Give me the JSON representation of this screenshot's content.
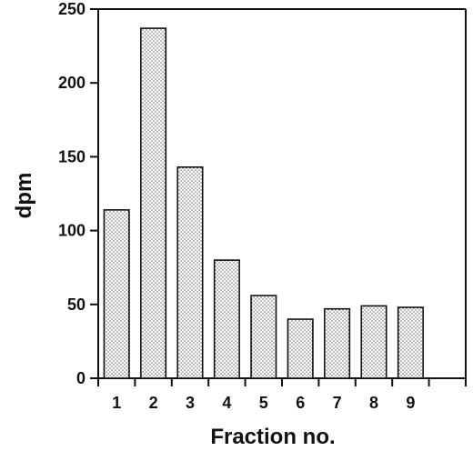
{
  "chart_data": {
    "type": "bar",
    "categories": [
      "1",
      "2",
      "3",
      "4",
      "5",
      "6",
      "7",
      "8",
      "9"
    ],
    "values": [
      114,
      237,
      143,
      80,
      56,
      40,
      47,
      49,
      48
    ],
    "title": "",
    "xlabel": "Fraction no.",
    "ylabel": "dpm",
    "ylim": [
      0,
      250
    ],
    "yticks": [
      "0",
      "50",
      "100",
      "150",
      "200",
      "250"
    ],
    "grid": false,
    "legend": "none",
    "bar_fill": "dotted"
  }
}
